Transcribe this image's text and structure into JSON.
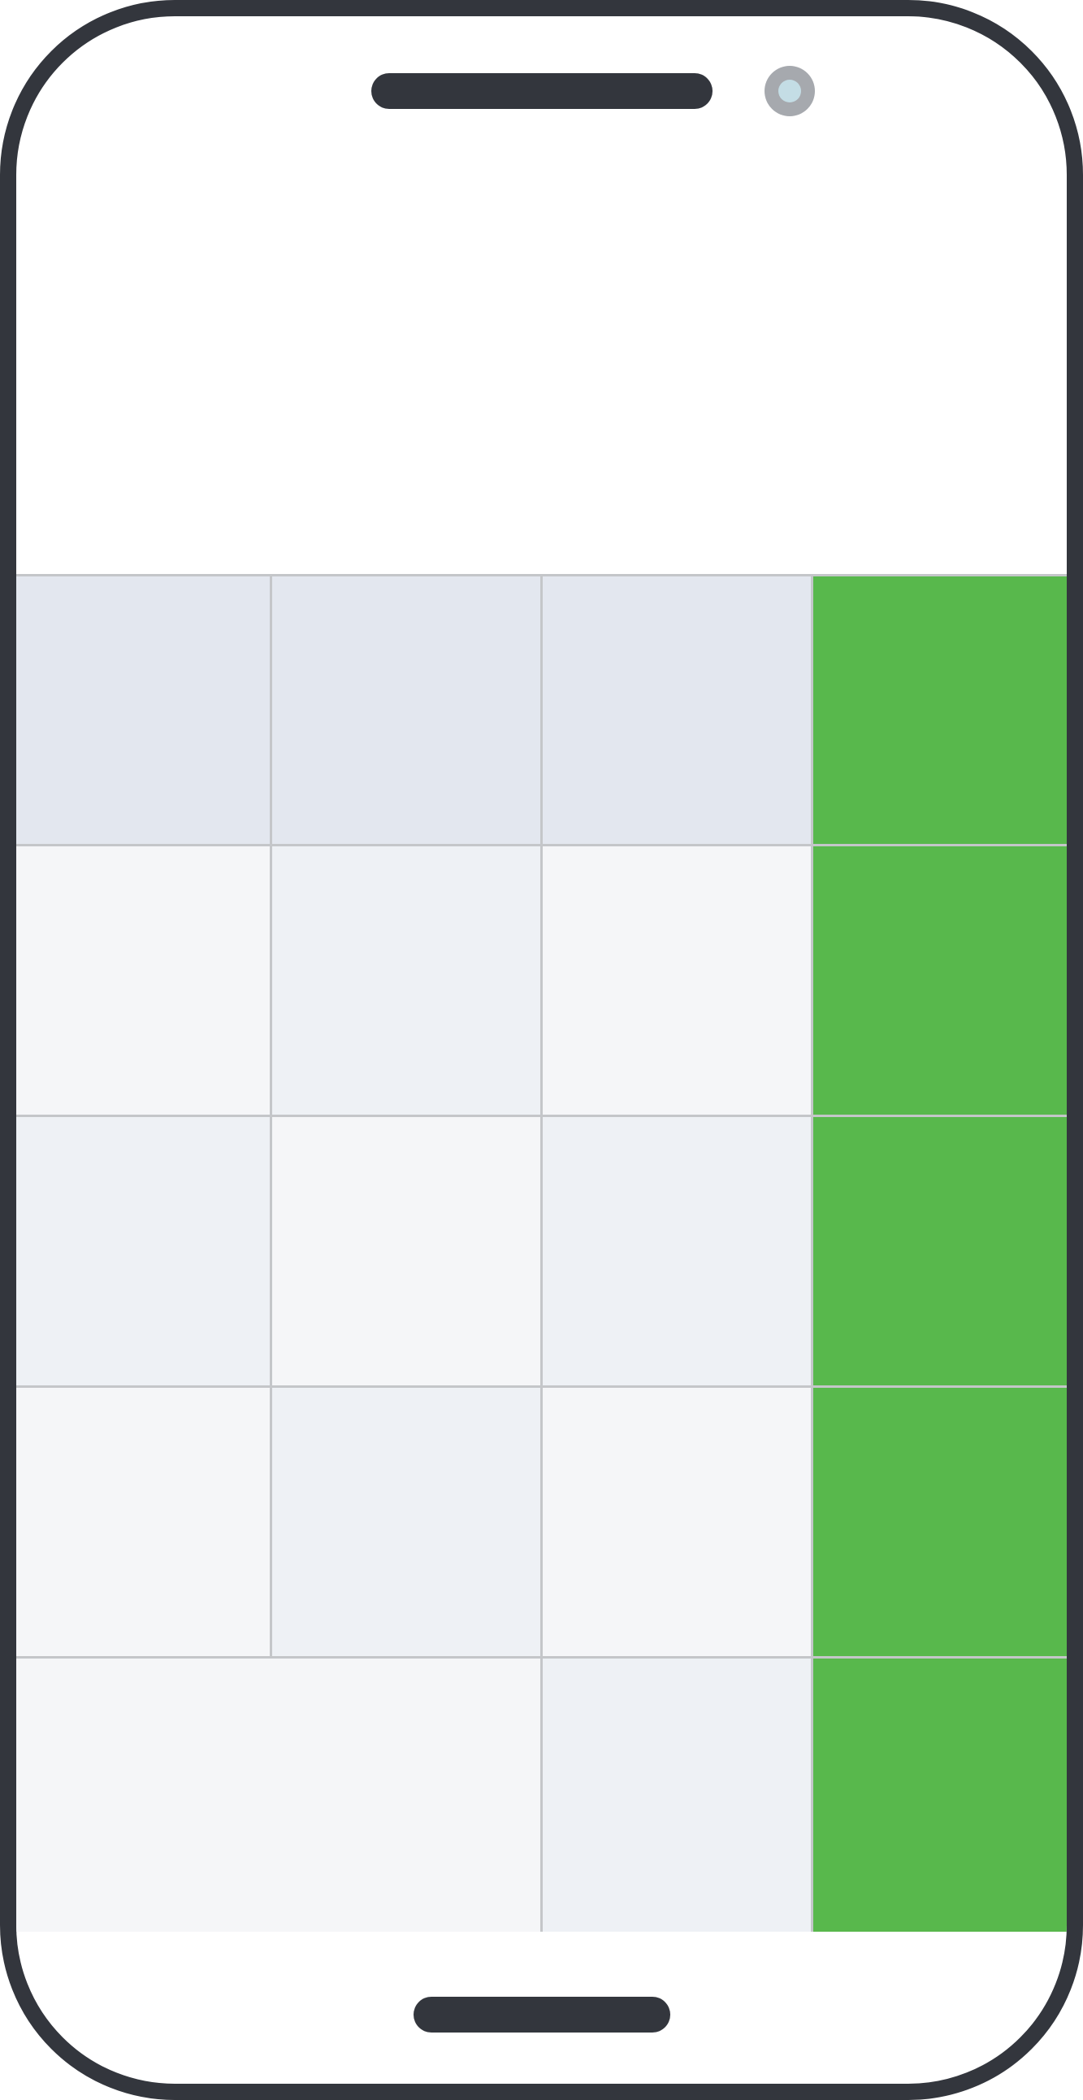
{
  "device": {
    "frame_color": "#33363d",
    "speaker": "speaker-grille",
    "camera": "front-camera-icon",
    "home_indicator": "home-indicator"
  },
  "layout_blocks": {
    "header_row_color": "#e3e7ef",
    "light_cell_color": "#f5f6f8",
    "medium_cell_color": "#eef1f5",
    "accent_column_color": "#58b84c",
    "grid_line_color": "#c4c6c9"
  }
}
